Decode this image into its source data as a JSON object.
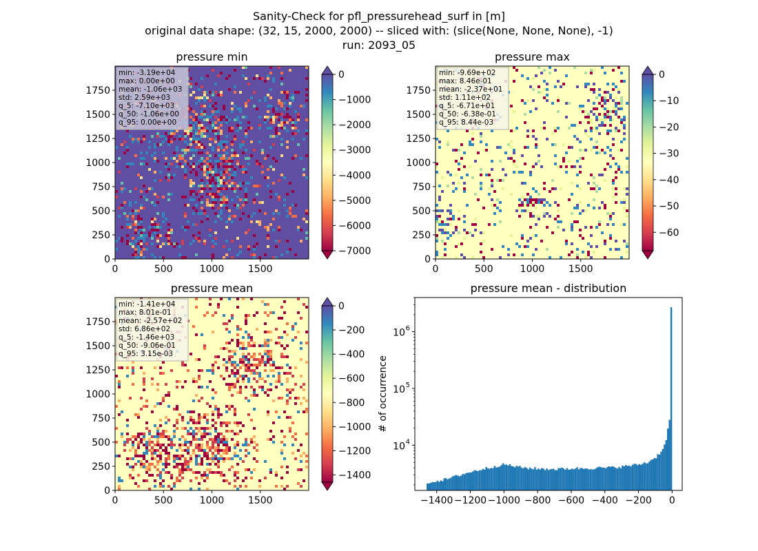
{
  "suptitle": {
    "line1": "Sanity-Check for pfl_pressurehead_surf in [m]",
    "line2": "original data shape: (32, 15, 2000, 2000) -- sliced with: (slice(None, None, None), -1)",
    "line3": "run: 2093_05"
  },
  "colors": {
    "spectral": [
      "#9e0142",
      "#d53e4f",
      "#f46d43",
      "#fdae61",
      "#fee08b",
      "#ffffbf",
      "#e6f598",
      "#abdda4",
      "#66c2a5",
      "#3288bd",
      "#5e4fa2"
    ],
    "hist_bar": "#1f77b4"
  },
  "chart_data": [
    {
      "type": "heatmap",
      "title": "pressure min",
      "xticks": [
        "0",
        "500",
        "1000",
        "1500"
      ],
      "yticks": [
        "0",
        "250",
        "500",
        "750",
        "1000",
        "1250",
        "1500",
        "1750"
      ],
      "xlim": [
        0,
        2000
      ],
      "ylim": [
        0,
        2000
      ],
      "colorbar": {
        "ticks": [
          "0",
          "−1000",
          "−2000",
          "−3000",
          "−4000",
          "−5000",
          "−6000",
          "−7000"
        ],
        "range": [
          -7000,
          0
        ],
        "extend": "both"
      },
      "stats": [
        "min: -3.19e+04",
        "max: 0.00e+00",
        "mean: -1.06e+03",
        "std: 2.59e+03",
        "q_5: -7.10e+03",
        "q_50: -1.06e+00",
        "q_95: 0.00e+00"
      ]
    },
    {
      "type": "heatmap",
      "title": "pressure max",
      "xticks": [
        "0",
        "500",
        "1000",
        "1500"
      ],
      "yticks": [
        "0",
        "250",
        "500",
        "750",
        "1000",
        "1250",
        "1500",
        "1750"
      ],
      "xlim": [
        0,
        2000
      ],
      "ylim": [
        0,
        2000
      ],
      "colorbar": {
        "ticks": [
          "0",
          "−10",
          "−20",
          "−30",
          "−40",
          "−50",
          "−60"
        ],
        "range": [
          -67,
          0
        ],
        "extend": "both"
      },
      "stats": [
        "min: -9.69e+02",
        "max: 8.46e-01",
        "mean: -2.37e+01",
        "std: 1.11e+02",
        "q_5: -6.71e+01",
        "q_50: -6.38e-01",
        "q_95: 8.44e-03"
      ]
    },
    {
      "type": "heatmap",
      "title": "pressure mean",
      "xticks": [
        "0",
        "500",
        "1000",
        "1500"
      ],
      "yticks": [
        "0",
        "250",
        "500",
        "750",
        "1000",
        "1250",
        "1500",
        "1750"
      ],
      "xlim": [
        0,
        2000
      ],
      "ylim": [
        0,
        2000
      ],
      "colorbar": {
        "ticks": [
          "0",
          "−200",
          "−400",
          "−600",
          "−800",
          "−1000",
          "−1200",
          "−1400"
        ],
        "range": [
          -1460,
          0
        ],
        "extend": "both"
      },
      "stats": [
        "min: -1.41e+04",
        "max: 8.01e-01",
        "mean: -2.57e+02",
        "std: 6.86e+02",
        "q_5: -1.46e+03",
        "q_50: -9.06e-01",
        "q_95: 3.15e-03"
      ]
    },
    {
      "type": "bar",
      "title": "pressure mean - distribution",
      "ylabel": "# of occurrence",
      "yscale": "log",
      "xlim": [
        -1530,
        60
      ],
      "ylim": [
        1600,
        4000000
      ],
      "xticks": [
        {
          "value": -1400,
          "label": "−1400"
        },
        {
          "value": -1200,
          "label": "−1200"
        },
        {
          "value": -1000,
          "label": "−1000"
        },
        {
          "value": -800,
          "label": "−800"
        },
        {
          "value": -600,
          "label": "−600"
        },
        {
          "value": -400,
          "label": "−400"
        },
        {
          "value": -200,
          "label": "−200"
        },
        {
          "value": 0,
          "label": "0"
        }
      ],
      "yticks": [
        {
          "value": 10000,
          "label": "10",
          "exp": "4"
        },
        {
          "value": 100000,
          "label": "10",
          "exp": "5"
        },
        {
          "value": 1000000,
          "label": "10",
          "exp": "6"
        }
      ],
      "bin_range": [
        -1460,
        0
      ],
      "bin_width": 10,
      "envelope": [
        [
          -1460,
          2200
        ],
        [
          -1350,
          2500
        ],
        [
          -1250,
          3100
        ],
        [
          -1150,
          3700
        ],
        [
          -1050,
          4300
        ],
        [
          -1000,
          4600
        ],
        [
          -950,
          4300
        ],
        [
          -900,
          4050
        ],
        [
          -800,
          3850
        ],
        [
          -700,
          3800
        ],
        [
          -600,
          3900
        ],
        [
          -500,
          3950
        ],
        [
          -400,
          4000
        ],
        [
          -300,
          4200
        ],
        [
          -200,
          4600
        ],
        [
          -150,
          5000
        ],
        [
          -100,
          6200
        ],
        [
          -70,
          7800
        ],
        [
          -50,
          10000
        ],
        [
          -40,
          13000
        ],
        [
          -30,
          19000
        ],
        [
          -20,
          27000
        ],
        [
          -10,
          26000
        ]
      ],
      "peak_bin": {
        "x": 0,
        "value": 2700000
      }
    }
  ]
}
